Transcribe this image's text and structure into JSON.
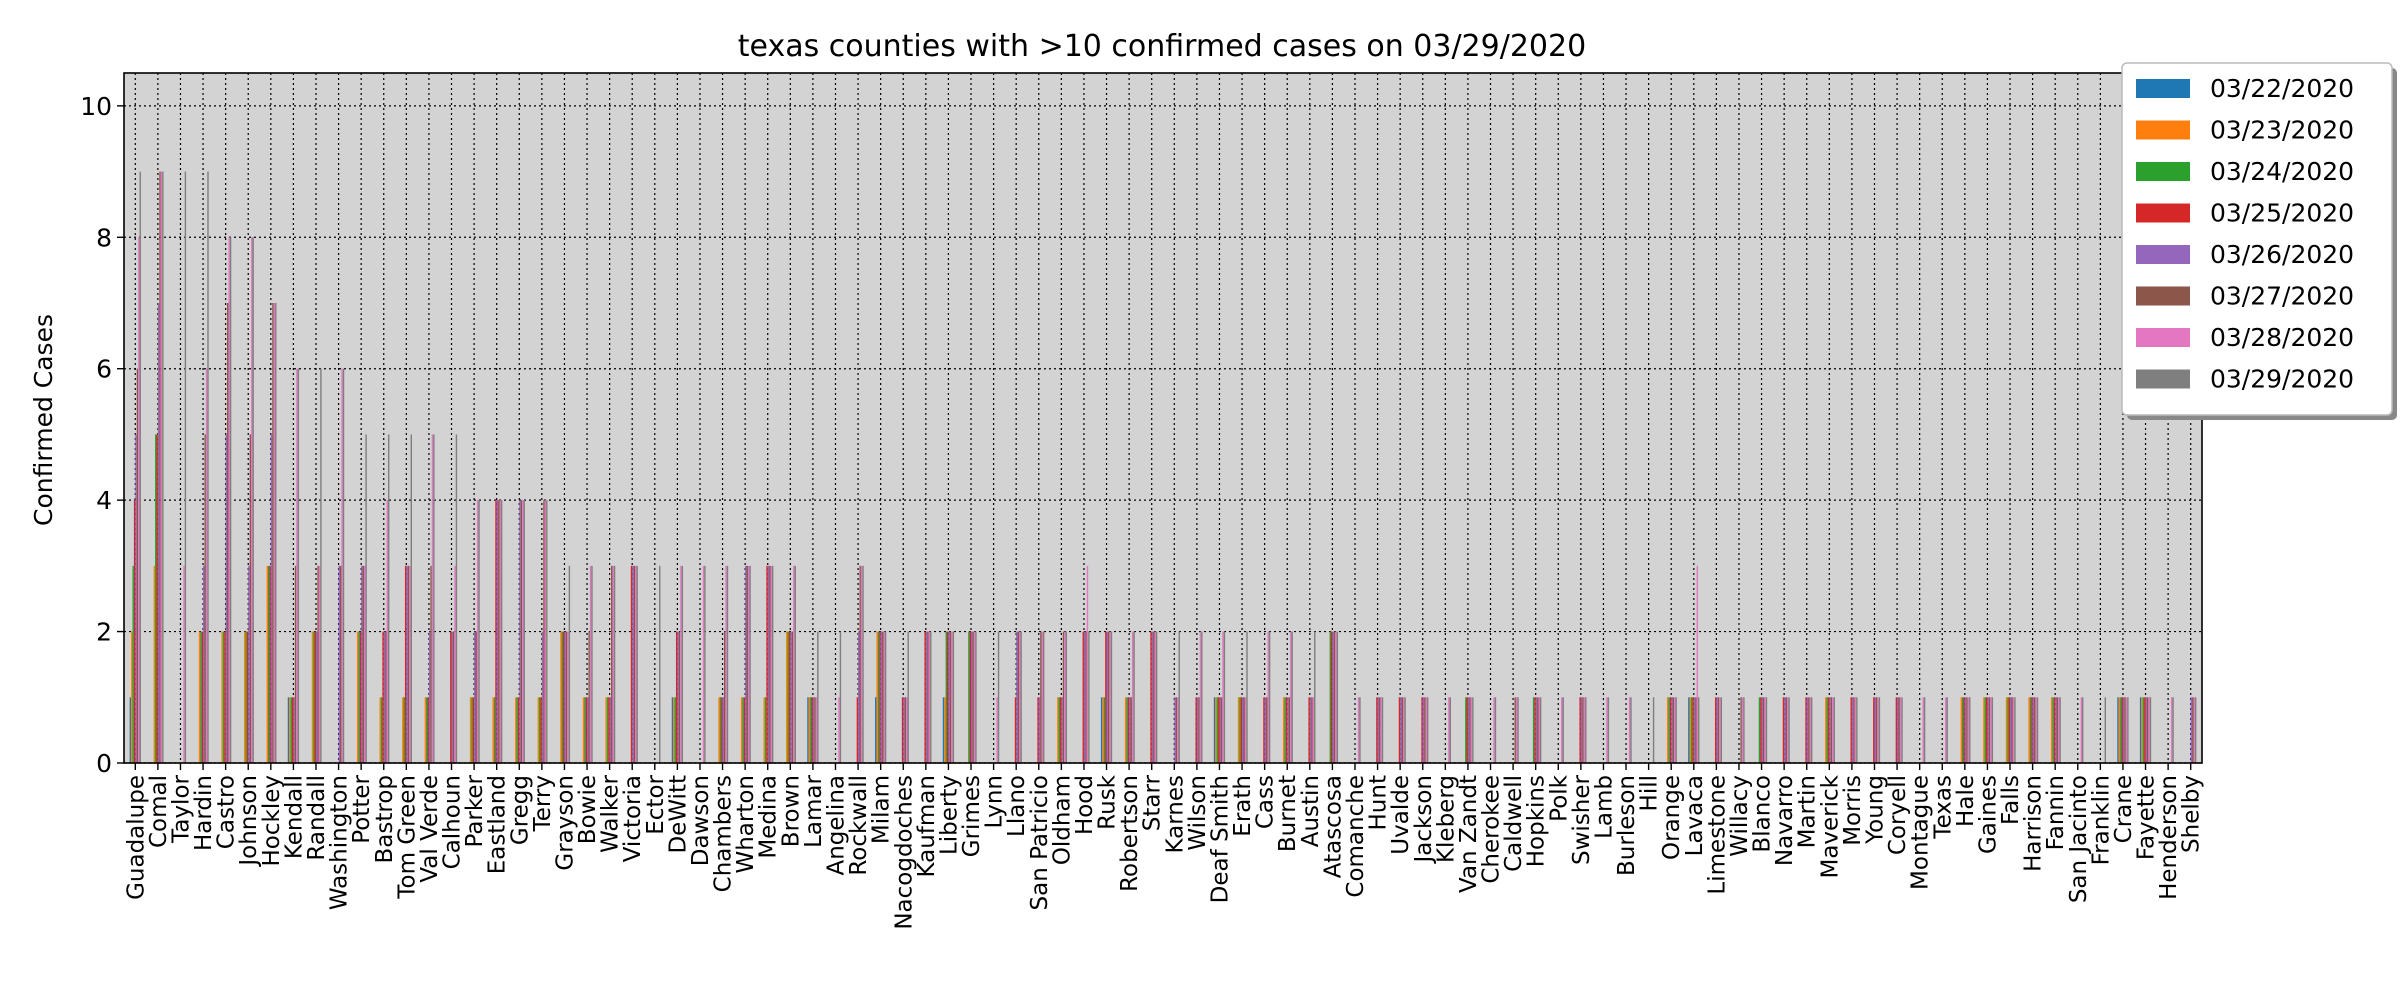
{
  "chart_data": {
    "type": "bar",
    "title": "texas counties with >10 confirmed cases on 03/29/2020",
    "xlabel": "",
    "ylabel": "Confirmed Cases",
    "ylim": [
      0,
      10.5
    ],
    "yticks": [
      0,
      2,
      4,
      6,
      8,
      10
    ],
    "grid": true,
    "legend_position": "outside-top-right",
    "categories": [
      "Guadalupe",
      "Comal",
      "Taylor",
      "Hardin",
      "Castro",
      "Johnson",
      "Hockley",
      "Kendall",
      "Randall",
      "Washington",
      "Potter",
      "Bastrop",
      "Tom Green",
      "Val Verde",
      "Calhoun",
      "Parker",
      "Eastland",
      "Gregg",
      "Terry",
      "Grayson",
      "Bowie",
      "Walker",
      "Victoria",
      "Ector",
      "DeWitt",
      "Dawson",
      "Chambers",
      "Wharton",
      "Medina",
      "Brown",
      "Lamar",
      "Angelina",
      "Rockwall",
      "Milam",
      "Nacogdoches",
      "Kaufman",
      "Liberty",
      "Grimes",
      "Lynn",
      "Llano",
      "San Patricio",
      "Oldham",
      "Hood",
      "Rusk",
      "Robertson",
      "Starr",
      "Karnes",
      "Wilson",
      "Deaf Smith",
      "Erath",
      "Cass",
      "Burnet",
      "Austin",
      "Atascosa",
      "Comanche",
      "Hunt",
      "Uvalde",
      "Jackson",
      "Kleberg",
      "Van Zandt",
      "Cherokee",
      "Caldwell",
      "Hopkins",
      "Polk",
      "Swisher",
      "Lamb",
      "Burleson",
      "Hill",
      "Orange",
      "Lavaca",
      "Limestone",
      "Willacy",
      "Blanco",
      "Navarro",
      "Martin",
      "Maverick",
      "Morris",
      "Young",
      "Coryell",
      "Montague",
      "Texas",
      "Hale",
      "Gaines",
      "Falls",
      "Harrison",
      "Fannin",
      "San Jacinto",
      "Franklin",
      "Crane",
      "Fayette",
      "Henderson",
      "Shelby"
    ],
    "series": [
      {
        "name": "03/22/2020",
        "color": "#1f77b4",
        "values": [
          1,
          0,
          0,
          0,
          0,
          0,
          0,
          1,
          0,
          0,
          0,
          0,
          0,
          0,
          0,
          0,
          0,
          0,
          0,
          0,
          0,
          0,
          0,
          0,
          1,
          0,
          0,
          0,
          0,
          0,
          1,
          0,
          0,
          1,
          0,
          0,
          1,
          0,
          0,
          0,
          0,
          0,
          0,
          1,
          0,
          0,
          0,
          0,
          1,
          0,
          0,
          0,
          0,
          0,
          0,
          0,
          0,
          0,
          0,
          0,
          0,
          0,
          0,
          0,
          0,
          0,
          0,
          0,
          0,
          1,
          0,
          0,
          0,
          0,
          0,
          0,
          0,
          0,
          0,
          0,
          0,
          0,
          0,
          0,
          0,
          0,
          0,
          0,
          1,
          1,
          0,
          0
        ]
      },
      {
        "name": "03/23/2020",
        "color": "#ff7f0e",
        "values": [
          2,
          3,
          0,
          2,
          2,
          2,
          3,
          1,
          2,
          0,
          2,
          1,
          1,
          1,
          0,
          1,
          1,
          1,
          1,
          2,
          1,
          1,
          0,
          0,
          1,
          0,
          1,
          1,
          1,
          2,
          1,
          0,
          0,
          2,
          0,
          0,
          1,
          0,
          0,
          0,
          0,
          1,
          0,
          1,
          1,
          0,
          0,
          0,
          1,
          1,
          0,
          1,
          0,
          0,
          0,
          0,
          0,
          0,
          0,
          0,
          0,
          0,
          0,
          0,
          0,
          0,
          0,
          0,
          1,
          1,
          0,
          0,
          0,
          0,
          0,
          1,
          0,
          0,
          0,
          0,
          0,
          1,
          1,
          1,
          1,
          1,
          0,
          0,
          1,
          1,
          0,
          0
        ]
      },
      {
        "name": "03/24/2020",
        "color": "#2ca02c",
        "values": [
          3,
          5,
          0,
          2,
          2,
          2,
          3,
          1,
          2,
          0,
          2,
          1,
          1,
          1,
          0,
          1,
          1,
          1,
          1,
          2,
          1,
          1,
          0,
          0,
          1,
          0,
          1,
          1,
          1,
          2,
          1,
          0,
          0,
          2,
          0,
          0,
          2,
          2,
          0,
          0,
          0,
          1,
          0,
          1,
          1,
          0,
          0,
          0,
          1,
          1,
          0,
          1,
          0,
          2,
          0,
          0,
          0,
          0,
          0,
          1,
          0,
          0,
          1,
          0,
          0,
          0,
          0,
          0,
          1,
          1,
          0,
          0,
          1,
          0,
          0,
          1,
          0,
          0,
          0,
          0,
          0,
          1,
          1,
          1,
          1,
          1,
          0,
          0,
          1,
          1,
          0,
          0
        ]
      },
      {
        "name": "03/25/2020",
        "color": "#d62728",
        "values": [
          4,
          5,
          0,
          2,
          2,
          2,
          3,
          1,
          2,
          0,
          2,
          2,
          3,
          1,
          2,
          1,
          4,
          1,
          1,
          2,
          1,
          1,
          3,
          0,
          2,
          0,
          1,
          1,
          3,
          2,
          1,
          0,
          1,
          2,
          1,
          2,
          2,
          2,
          0,
          1,
          1,
          1,
          2,
          2,
          1,
          2,
          0,
          1,
          1,
          1,
          1,
          1,
          1,
          2,
          0,
          1,
          1,
          1,
          0,
          1,
          0,
          0,
          1,
          0,
          1,
          0,
          0,
          0,
          1,
          1,
          1,
          0,
          1,
          1,
          1,
          1,
          1,
          1,
          1,
          0,
          0,
          1,
          1,
          1,
          1,
          1,
          0,
          0,
          1,
          1,
          0,
          0
        ]
      },
      {
        "name": "03/26/2020",
        "color": "#9467bd",
        "values": [
          5,
          7,
          0,
          3,
          5,
          3,
          5,
          1,
          2,
          3,
          3,
          2,
          3,
          2,
          2,
          2,
          4,
          4,
          2,
          2,
          1,
          1,
          3,
          0,
          2,
          0,
          1,
          3,
          3,
          2,
          1,
          0,
          2,
          2,
          1,
          2,
          2,
          2,
          0,
          2,
          1,
          1,
          2,
          2,
          1,
          2,
          1,
          1,
          1,
          1,
          1,
          1,
          1,
          2,
          0,
          1,
          1,
          1,
          0,
          1,
          0,
          0,
          1,
          0,
          1,
          0,
          0,
          0,
          1,
          1,
          1,
          0,
          1,
          1,
          1,
          1,
          1,
          1,
          1,
          0,
          0,
          1,
          1,
          1,
          1,
          1,
          0,
          0,
          1,
          1,
          0,
          1
        ]
      },
      {
        "name": "03/27/2020",
        "color": "#8c564b",
        "values": [
          6,
          9,
          0,
          5,
          7,
          5,
          7,
          3,
          3,
          3,
          3,
          2,
          3,
          3,
          2,
          2,
          4,
          4,
          4,
          2,
          2,
          3,
          3,
          0,
          2,
          0,
          2,
          3,
          3,
          2,
          1,
          0,
          3,
          2,
          1,
          2,
          2,
          2,
          0,
          2,
          2,
          2,
          2,
          2,
          1,
          2,
          1,
          1,
          1,
          1,
          1,
          1,
          1,
          2,
          0,
          1,
          1,
          1,
          0,
          1,
          0,
          1,
          1,
          0,
          1,
          0,
          0,
          0,
          1,
          1,
          1,
          1,
          1,
          1,
          1,
          1,
          1,
          1,
          1,
          0,
          0,
          1,
          1,
          1,
          1,
          1,
          0,
          0,
          1,
          1,
          0,
          1
        ]
      },
      {
        "name": "03/28/2020",
        "color": "#e377c2",
        "values": [
          8,
          9,
          3,
          6,
          8,
          8,
          7,
          6,
          3,
          6,
          3,
          4,
          3,
          5,
          3,
          4,
          4,
          4,
          4,
          2,
          3,
          3,
          3,
          0,
          3,
          3,
          3,
          3,
          3,
          3,
          1,
          1,
          3,
          2,
          1,
          2,
          2,
          2,
          1,
          2,
          2,
          2,
          3,
          2,
          2,
          2,
          1,
          2,
          2,
          1,
          2,
          2,
          1,
          2,
          1,
          1,
          1,
          1,
          1,
          1,
          1,
          1,
          1,
          1,
          1,
          1,
          1,
          0,
          1,
          3,
          1,
          1,
          1,
          1,
          1,
          1,
          1,
          1,
          1,
          1,
          1,
          1,
          1,
          1,
          1,
          1,
          1,
          0,
          1,
          1,
          1,
          1
        ]
      },
      {
        "name": "03/29/2020",
        "color": "#7f7f7f",
        "values": [
          9,
          9,
          9,
          9,
          8,
          8,
          7,
          6,
          6,
          6,
          5,
          5,
          5,
          5,
          5,
          4,
          4,
          4,
          4,
          3,
          3,
          3,
          3,
          3,
          3,
          3,
          3,
          3,
          3,
          3,
          2,
          2,
          3,
          2,
          2,
          2,
          2,
          2,
          2,
          2,
          2,
          2,
          2,
          2,
          2,
          2,
          2,
          2,
          2,
          2,
          2,
          2,
          2,
          2,
          1,
          1,
          1,
          1,
          1,
          1,
          1,
          1,
          1,
          1,
          1,
          1,
          1,
          1,
          1,
          1,
          1,
          1,
          1,
          1,
          1,
          1,
          1,
          1,
          1,
          1,
          1,
          1,
          1,
          1,
          1,
          1,
          1,
          1,
          1,
          1,
          1,
          1
        ]
      }
    ]
  }
}
